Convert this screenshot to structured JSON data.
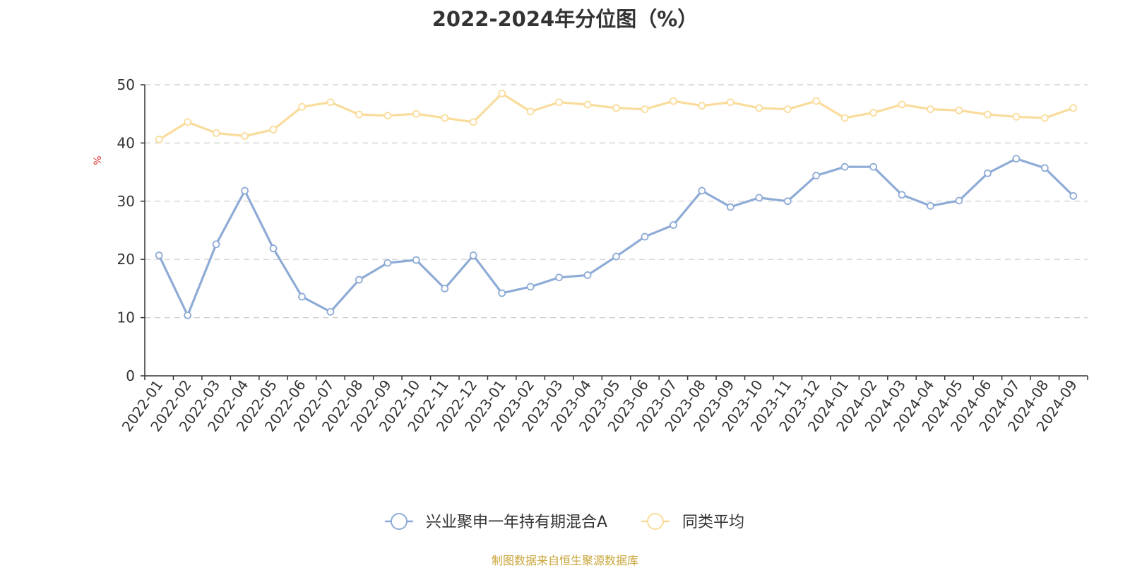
{
  "chart_data": {
    "type": "line",
    "title": "2022-2024年分位图（%）",
    "ylabel": "%",
    "xlabel": "",
    "ylim": [
      0,
      50
    ],
    "yticks": [
      0,
      10,
      20,
      30,
      40,
      50
    ],
    "grid": true,
    "legend_position": "bottom-center",
    "categories": [
      "2022-01",
      "2022-02",
      "2022-03",
      "2022-04",
      "2022-05",
      "2022-06",
      "2022-07",
      "2022-08",
      "2022-09",
      "2022-10",
      "2022-11",
      "2022-12",
      "2023-01",
      "2023-02",
      "2023-03",
      "2023-04",
      "2023-05",
      "2023-06",
      "2023-07",
      "2023-08",
      "2023-09",
      "2023-10",
      "2023-11",
      "2023-12",
      "2024-01",
      "2024-02",
      "2024-03",
      "2024-04",
      "2024-05",
      "2024-06",
      "2024-07",
      "2024-08",
      "2024-09"
    ],
    "series": [
      {
        "name": "兴业聚申一年持有期混合A",
        "color": "#8eabd6",
        "values": [
          20.7,
          10.4,
          22.6,
          31.8,
          21.9,
          13.6,
          11.0,
          16.5,
          19.4,
          19.9,
          15.0,
          20.7,
          14.2,
          15.3,
          16.9,
          17.3,
          20.5,
          23.9,
          25.9,
          31.8,
          29.0,
          30.6,
          30.0,
          34.4,
          35.9,
          35.9,
          31.1,
          29.2,
          30.1,
          34.8,
          37.3,
          35.7,
          30.9
        ]
      },
      {
        "name": "同类平均",
        "color": "#f9dc9b",
        "values": [
          40.6,
          43.6,
          41.7,
          41.2,
          42.3,
          46.2,
          47.0,
          44.9,
          44.7,
          45.0,
          44.3,
          43.6,
          48.5,
          45.4,
          47.0,
          46.6,
          46.0,
          45.8,
          47.2,
          46.4,
          47.0,
          46.0,
          45.8,
          47.2,
          44.3,
          45.2,
          46.6,
          45.8,
          45.6,
          44.9,
          44.5,
          44.3,
          46.0
        ]
      }
    ]
  },
  "footer": {
    "source": "制图数据来自恒生聚源数据库"
  }
}
